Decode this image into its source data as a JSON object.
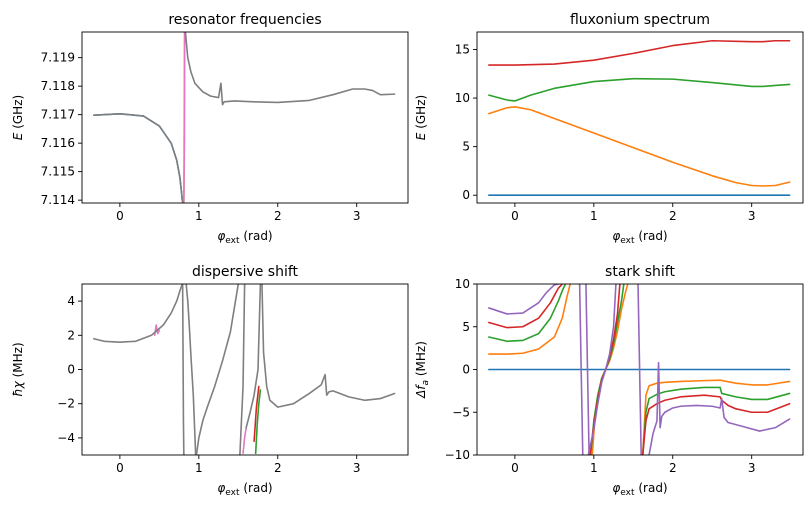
{
  "figure": {
    "background": "#ffffff"
  },
  "chart_data": [
    {
      "type": "line",
      "title": "resonator frequencies",
      "xlabel_main": "φ",
      "xlabel_sub": "ext",
      "xlabel_unit": " (rad)",
      "ylabel_main": "E",
      "ylabel_unit": " (GHz)",
      "xlim": [
        -0.48,
        3.65
      ],
      "ylim": [
        7.1139,
        7.1199
      ],
      "xticks": [
        0,
        1,
        2,
        3
      ],
      "xtick_labels": [
        "0",
        "1",
        "2",
        "3"
      ],
      "yticks": [
        7.114,
        7.115,
        7.116,
        7.117,
        7.118,
        7.119
      ],
      "ytick_labels": [
        "7.114",
        "7.115",
        "7.116",
        "7.117",
        "7.118",
        "7.119"
      ],
      "series": [
        {
          "color": "#1f77b4",
          "x": [
            -0.33,
            0,
            0.3,
            0.5,
            0.65,
            0.72,
            0.76,
            0.78,
            0.79,
            0.8
          ],
          "y": [
            7.11698,
            7.11703,
            7.11695,
            7.1166,
            7.116,
            7.1154,
            7.1148,
            7.1143,
            7.114,
            7.1139
          ]
        },
        {
          "color": "#ff7f0e",
          "x": [
            0.81,
            0.812,
            0.815,
            0.82,
            0.83
          ],
          "y": [
            7.1139,
            7.1147,
            7.1165,
            7.1199,
            7.1199
          ]
        },
        {
          "color": "#e377c2",
          "x": [
            0.81,
            0.813,
            0.818,
            0.82,
            0.83
          ],
          "y": [
            7.1139,
            7.1146,
            7.1162,
            7.1199,
            7.1199
          ]
        },
        {
          "color": "#7f7f7f",
          "x": [
            0.83,
            0.86,
            0.9,
            0.95,
            1.05,
            1.15,
            1.25,
            1.28,
            1.3,
            1.32,
            1.45,
            1.7,
            2.0,
            2.4,
            2.7,
            2.95,
            3.1,
            3.2,
            3.3,
            3.48
          ],
          "y": [
            7.1199,
            7.119,
            7.1185,
            7.1181,
            7.1178,
            7.11765,
            7.1176,
            7.1181,
            7.11735,
            7.11745,
            7.11748,
            7.11745,
            7.11743,
            7.1175,
            7.1177,
            7.1179,
            7.1179,
            7.11785,
            7.1177,
            7.11772
          ]
        },
        {
          "color": "#7f7f7f",
          "x": [
            -0.33,
            0,
            0.3,
            0.5,
            0.65,
            0.72,
            0.76,
            0.78,
            0.79,
            0.8
          ],
          "y": [
            7.11698,
            7.11703,
            7.11695,
            7.1166,
            7.116,
            7.1154,
            7.1148,
            7.1143,
            7.114,
            7.1139
          ]
        }
      ]
    },
    {
      "type": "line",
      "title": "fluxonium spectrum",
      "xlabel_main": "φ",
      "xlabel_sub": "ext",
      "xlabel_unit": " (rad)",
      "ylabel_main": "E",
      "ylabel_unit": " (GHz)",
      "xlim": [
        -0.48,
        3.65
      ],
      "ylim": [
        -0.8,
        16.8
      ],
      "xticks": [
        0,
        1,
        2,
        3
      ],
      "xtick_labels": [
        "0",
        "1",
        "2",
        "3"
      ],
      "yticks": [
        0,
        5,
        10,
        15
      ],
      "ytick_labels": [
        "0",
        "5",
        "10",
        "15"
      ],
      "series": [
        {
          "color": "#1f77b4",
          "x": [
            -0.33,
            3.48
          ],
          "y": [
            0,
            0
          ]
        },
        {
          "color": "#ff7f0e",
          "x": [
            -0.33,
            -0.1,
            0,
            0.2,
            0.5,
            1.0,
            1.5,
            2.0,
            2.5,
            2.8,
            3.0,
            3.14,
            3.3,
            3.48
          ],
          "y": [
            8.4,
            9.0,
            9.1,
            8.8,
            7.9,
            6.4,
            4.9,
            3.4,
            2.0,
            1.3,
            1.0,
            0.95,
            1.0,
            1.35
          ]
        },
        {
          "color": "#2ca02c",
          "x": [
            -0.33,
            -0.1,
            0,
            0.2,
            0.5,
            1.0,
            1.5,
            2.0,
            2.5,
            3.0,
            3.14,
            3.3,
            3.48
          ],
          "y": [
            10.3,
            9.8,
            9.7,
            10.3,
            11.0,
            11.7,
            12.0,
            11.95,
            11.6,
            11.2,
            11.2,
            11.3,
            11.4
          ]
        },
        {
          "color": "#d62728",
          "x": [
            -0.33,
            0,
            0.5,
            1.0,
            1.5,
            2.0,
            2.5,
            3.0,
            3.14,
            3.3,
            3.48
          ],
          "y": [
            13.4,
            13.4,
            13.5,
            13.9,
            14.6,
            15.4,
            15.9,
            15.8,
            15.8,
            15.9,
            15.9
          ]
        }
      ]
    },
    {
      "type": "line",
      "title": "dispersive shift",
      "xlabel_main": "φ",
      "xlabel_sub": "ext",
      "xlabel_unit": " (rad)",
      "ylabel_main": "ħχ",
      "ylabel_unit": " (MHz)",
      "xlim": [
        -0.48,
        3.65
      ],
      "ylim": [
        -5,
        5
      ],
      "xticks": [
        0,
        1,
        2,
        3
      ],
      "xtick_labels": [
        "0",
        "1",
        "2",
        "3"
      ],
      "yticks": [
        -4,
        -2,
        0,
        2,
        4
      ],
      "ytick_labels": [
        "−4",
        "−2",
        "0",
        "2",
        "4"
      ],
      "series": [
        {
          "color": "#e377c2",
          "x": [
            0.44,
            0.46,
            0.48,
            0.5
          ],
          "y": [
            2.0,
            2.6,
            2.1,
            2.3
          ]
        },
        {
          "color": "#2ca02c",
          "x": [
            1.72,
            1.74,
            1.76,
            1.78
          ],
          "y": [
            -4.9,
            -3.2,
            -2.0,
            -1.2
          ]
        },
        {
          "color": "#d62728",
          "x": [
            1.7,
            1.73,
            1.76
          ],
          "y": [
            -4.2,
            -2.2,
            -1.0
          ]
        },
        {
          "color": "#e377c2",
          "x": [
            1.56,
            1.58,
            1.6
          ],
          "y": [
            -4.9,
            -4.0,
            -3.4
          ]
        },
        {
          "color": "#7f7f7f",
          "x": [
            -0.33,
            -0.2,
            0,
            0.2,
            0.4,
            0.55,
            0.65,
            0.72,
            0.76,
            0.79
          ],
          "y": [
            1.8,
            1.65,
            1.6,
            1.65,
            2.0,
            2.6,
            3.3,
            4.0,
            4.6,
            5.0
          ]
        },
        {
          "color": "#7f7f7f",
          "x": [
            0.795,
            0.8,
            0.805,
            0.81,
            0.82
          ],
          "y": [
            5,
            1.0,
            -3.0,
            -5,
            -5
          ]
        },
        {
          "color": "#7f7f7f",
          "x": [
            0.84,
            0.86,
            0.88,
            0.9,
            0.93,
            0.96
          ],
          "y": [
            5,
            4.0,
            2.5,
            0.8,
            -1.5,
            -5
          ]
        },
        {
          "color": "#7f7f7f",
          "x": [
            0.97,
            1.0,
            1.05,
            1.1,
            1.2,
            1.3,
            1.4,
            1.45,
            1.5
          ],
          "y": [
            -5,
            -4.0,
            -3.0,
            -2.3,
            -1.0,
            0.5,
            2.2,
            3.6,
            5
          ]
        },
        {
          "color": "#7f7f7f",
          "x": [
            1.52,
            1.54,
            1.56,
            1.58
          ],
          "y": [
            -5,
            -3.0,
            -1.0,
            5
          ]
        },
        {
          "color": "#7f7f7f",
          "x": [
            1.6,
            1.65,
            1.7,
            1.75,
            1.78
          ],
          "y": [
            -3.4,
            -2.5,
            -1.5,
            0,
            5
          ]
        },
        {
          "color": "#7f7f7f",
          "x": [
            1.8,
            1.82,
            1.86,
            1.9,
            2.0,
            2.2,
            2.4,
            2.55,
            2.6,
            2.62,
            2.65,
            2.7,
            2.9,
            3.1,
            3.3,
            3.48
          ],
          "y": [
            5,
            1.0,
            -1.0,
            -1.8,
            -2.2,
            -2.0,
            -1.4,
            -0.9,
            -0.3,
            -1.5,
            -1.3,
            -1.25,
            -1.6,
            -1.8,
            -1.7,
            -1.4
          ]
        }
      ]
    },
    {
      "type": "line",
      "title": "stark shift",
      "xlabel_main": "φ",
      "xlabel_sub": "ext",
      "xlabel_unit": " (rad)",
      "ylabel_main": "Δf",
      "ylabel_sub": "a",
      "ylabel_unit": " (MHz)",
      "xlim": [
        -0.48,
        3.65
      ],
      "ylim": [
        -10,
        10
      ],
      "xticks": [
        0,
        1,
        2,
        3
      ],
      "xtick_labels": [
        "0",
        "1",
        "2",
        "3"
      ],
      "yticks": [
        -10,
        -5,
        0,
        5,
        10
      ],
      "ytick_labels": [
        "−10",
        "−5",
        "0",
        "5",
        "10"
      ],
      "series": [
        {
          "color": "#1f77b4",
          "x": [
            -0.33,
            3.48
          ],
          "y": [
            0,
            0
          ]
        },
        {
          "color": "#ff7f0e",
          "x": [
            -0.33,
            -0.1,
            0.1,
            0.3,
            0.5,
            0.6,
            0.66,
            0.7
          ],
          "y": [
            1.8,
            1.8,
            1.9,
            2.4,
            3.8,
            6.0,
            8.5,
            10
          ]
        },
        {
          "color": "#ff7f0e",
          "x": [
            0.98,
            1.02,
            1.08,
            1.12,
            1.16,
            1.2,
            1.25,
            1.3,
            1.35,
            1.4,
            1.43
          ],
          "y": [
            -10,
            -5.0,
            -2.0,
            -0.6,
            0.2,
            1.0,
            2.5,
            4.5,
            7.0,
            9.0,
            10
          ]
        },
        {
          "color": "#ff7f0e",
          "x": [
            1.62,
            1.66,
            1.7,
            1.8,
            1.9,
            2.1,
            2.4,
            2.6,
            2.8,
            3.0,
            3.2,
            3.48
          ],
          "y": [
            -10,
            -3.0,
            -1.9,
            -1.6,
            -1.5,
            -1.4,
            -1.3,
            -1.25,
            -1.6,
            -1.8,
            -1.8,
            -1.4
          ]
        },
        {
          "color": "#2ca02c",
          "x": [
            -0.33,
            -0.1,
            0.1,
            0.3,
            0.45,
            0.55,
            0.6,
            0.64
          ],
          "y": [
            3.8,
            3.3,
            3.4,
            4.2,
            6.0,
            8.0,
            9.2,
            10
          ]
        },
        {
          "color": "#2ca02c",
          "x": [
            0.96,
            1.0,
            1.05,
            1.1,
            1.15,
            1.2,
            1.25,
            1.3,
            1.35,
            1.38
          ],
          "y": [
            -10,
            -6.0,
            -3.0,
            -1.0,
            0,
            1.2,
            3.0,
            5.5,
            8.0,
            10
          ]
        },
        {
          "color": "#2ca02c",
          "x": [
            1.62,
            1.66,
            1.7,
            1.8,
            1.9,
            2.1,
            2.4,
            2.6,
            2.62,
            2.8,
            3.0,
            3.2,
            3.48
          ],
          "y": [
            -10,
            -5.0,
            -3.4,
            -2.9,
            -2.6,
            -2.3,
            -2.1,
            -2.1,
            -2.8,
            -3.2,
            -3.5,
            -3.5,
            -2.8
          ]
        },
        {
          "color": "#d62728",
          "x": [
            -0.33,
            -0.1,
            0.1,
            0.3,
            0.45,
            0.55,
            0.6
          ],
          "y": [
            5.5,
            4.9,
            5.0,
            6.0,
            7.8,
            9.5,
            10
          ]
        },
        {
          "color": "#d62728",
          "x": [
            0.95,
            1.0,
            1.05,
            1.1,
            1.15,
            1.2,
            1.25,
            1.3,
            1.33
          ],
          "y": [
            -10,
            -6.5,
            -3.5,
            -1.2,
            0,
            1.5,
            3.5,
            6.5,
            10
          ]
        },
        {
          "color": "#d62728",
          "x": [
            1.62,
            1.66,
            1.7,
            1.8,
            1.9,
            2.1,
            2.4,
            2.6,
            2.62,
            2.7,
            2.8,
            3.0,
            3.2,
            3.48
          ],
          "y": [
            -10,
            -6.0,
            -4.6,
            -4.0,
            -3.6,
            -3.2,
            -3.0,
            -3.2,
            -3.6,
            -4.2,
            -4.6,
            -5.0,
            -5.0,
            -4.0
          ]
        },
        {
          "color": "#9467bd",
          "x": [
            -0.33,
            -0.1,
            0.1,
            0.3,
            0.4,
            0.5,
            0.55
          ],
          "y": [
            7.2,
            6.5,
            6.6,
            7.8,
            9.0,
            9.9,
            10
          ]
        },
        {
          "color": "#9467bd",
          "x": [
            0.82,
            0.84,
            0.86
          ],
          "y": [
            10,
            0,
            -10
          ]
        },
        {
          "color": "#9467bd",
          "x": [
            0.93,
            1.0,
            1.05,
            1.1,
            1.15,
            1.2,
            1.25,
            1.28
          ],
          "y": [
            -10,
            -7.0,
            -4.0,
            -1.5,
            0,
            1.8,
            5.0,
            10
          ]
        },
        {
          "color": "#9467bd",
          "x": [
            1.56,
            1.58,
            1.6
          ],
          "y": [
            10,
            0,
            -10
          ]
        },
        {
          "color": "#9467bd",
          "x": [
            1.7,
            1.75,
            1.8,
            1.82,
            1.84,
            1.86,
            1.9,
            2.0,
            2.1,
            2.3,
            2.5,
            2.6,
            2.62,
            2.65,
            2.7,
            2.9,
            3.1,
            3.3,
            3.48
          ],
          "y": [
            -10,
            -7.5,
            -6.0,
            0.8,
            -6.8,
            -5.5,
            -5.0,
            -4.5,
            -4.3,
            -4.2,
            -4.3,
            -4.5,
            -3.4,
            -5.6,
            -6.2,
            -6.7,
            -7.2,
            -6.8,
            -5.8
          ]
        },
        {
          "color": "#9467bd",
          "x": [
            0.9,
            0.92,
            0.94
          ],
          "y": [
            10,
            0,
            -10
          ]
        }
      ]
    }
  ]
}
